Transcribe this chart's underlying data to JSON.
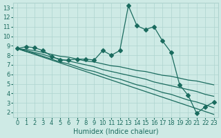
{
  "xlabel": "Humidex (Indice chaleur)",
  "xlim": [
    -0.5,
    23.5
  ],
  "ylim": [
    1.5,
    13.5
  ],
  "xticks": [
    0,
    1,
    2,
    3,
    4,
    5,
    6,
    7,
    8,
    9,
    10,
    11,
    12,
    13,
    14,
    15,
    16,
    17,
    18,
    19,
    20,
    21,
    22,
    23
  ],
  "yticks": [
    2,
    3,
    4,
    5,
    6,
    7,
    8,
    9,
    10,
    11,
    12,
    13
  ],
  "bg_color": "#ceeae5",
  "line_color": "#1a6b5e",
  "grid_color": "#aed4cf",
  "lines": [
    {
      "y": [
        8.7,
        8.9,
        8.8,
        8.5,
        7.9,
        7.5,
        7.5,
        7.6,
        7.6,
        7.5,
        8.5,
        8.0,
        8.5,
        13.2,
        11.1,
        10.7,
        11.0,
        9.5,
        8.3,
        4.9,
        3.8,
        1.9,
        2.6,
        3.1
      ],
      "marker": true
    },
    {
      "y": [
        8.7,
        8.4,
        8.1,
        7.8,
        7.5,
        7.2,
        6.9,
        6.6,
        6.3,
        6.0,
        5.7,
        5.4,
        5.1,
        4.8,
        4.5,
        4.2,
        3.9,
        3.6,
        3.3,
        3.0,
        2.7,
        2.4,
        2.1,
        1.8
      ],
      "marker": false
    },
    {
      "y": [
        8.7,
        8.4,
        8.2,
        7.9,
        7.6,
        7.3,
        7.1,
        6.8,
        6.5,
        6.3,
        6.0,
        5.7,
        5.5,
        5.2,
        4.9,
        4.7,
        4.4,
        4.1,
        3.9,
        3.6,
        3.3,
        3.1,
        2.8,
        2.5
      ],
      "marker": false
    },
    {
      "y": [
        8.7,
        8.5,
        8.3,
        8.1,
        7.8,
        7.6,
        7.4,
        7.2,
        7.0,
        6.8,
        6.5,
        6.3,
        6.1,
        5.9,
        5.7,
        5.5,
        5.2,
        5.0,
        4.8,
        4.6,
        4.4,
        4.2,
        3.9,
        3.7
      ],
      "marker": false
    },
    {
      "y": [
        8.7,
        8.6,
        8.5,
        8.3,
        8.1,
        7.9,
        7.8,
        7.6,
        7.4,
        7.3,
        7.1,
        6.9,
        6.8,
        6.6,
        6.4,
        6.3,
        6.1,
        5.9,
        5.8,
        5.6,
        5.4,
        5.3,
        5.1,
        4.9
      ],
      "marker": false
    }
  ],
  "marker_size": 3,
  "line_width": 0.9
}
